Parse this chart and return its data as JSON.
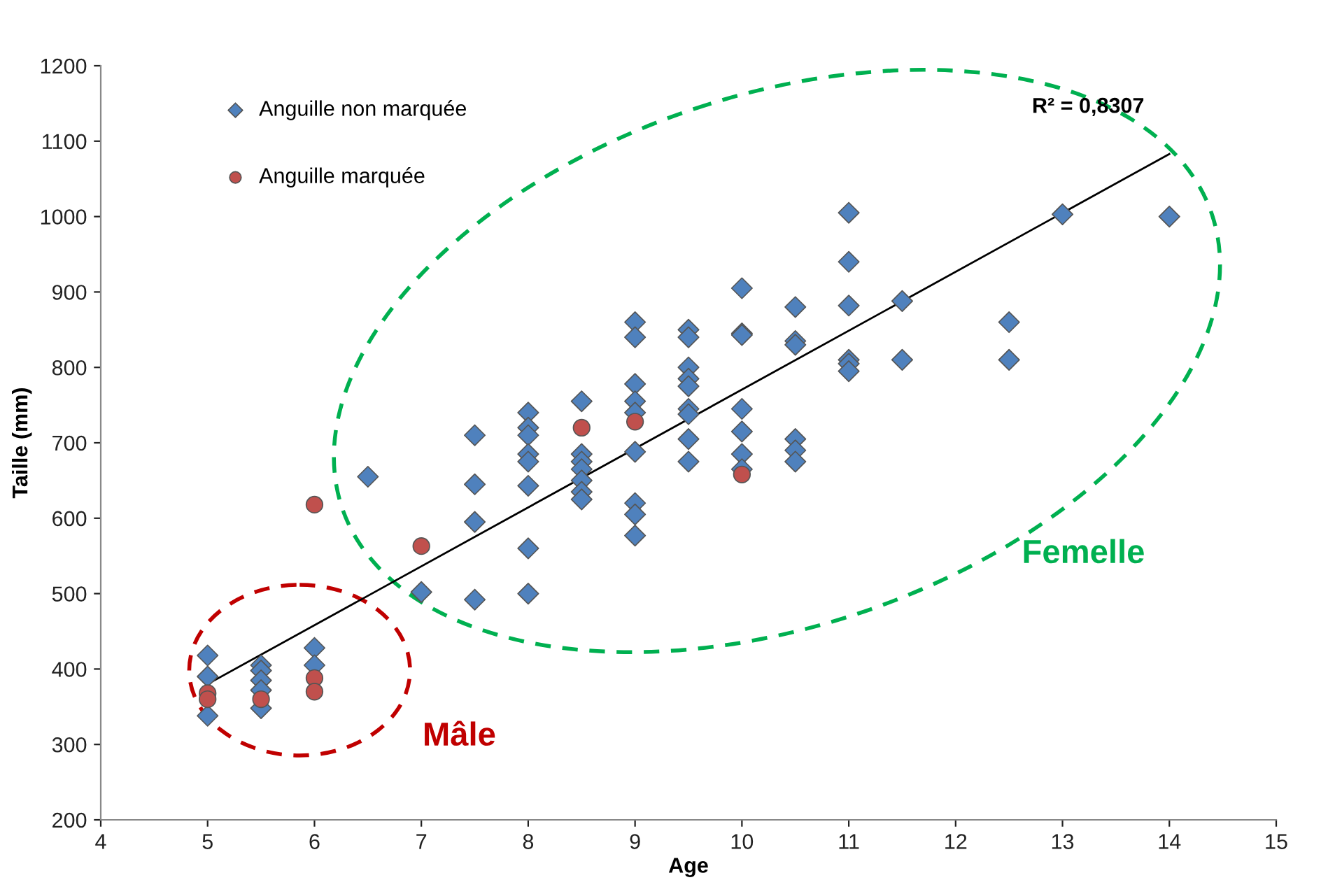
{
  "chart_data": {
    "type": "scatter",
    "xlabel": "Age",
    "ylabel": "Taille (mm)",
    "xlim": [
      4,
      15
    ],
    "xticks": [
      4,
      5,
      6,
      7,
      8,
      9,
      10,
      11,
      12,
      13,
      14,
      15
    ],
    "ylim": [
      200,
      1200
    ],
    "yticks": [
      200,
      300,
      400,
      500,
      600,
      700,
      800,
      900,
      1000,
      1100,
      1200
    ],
    "grid": false,
    "legend": "top left",
    "annotations": [
      "R² = 0,8307",
      "Mâle",
      "Femelle"
    ],
    "series": [
      {
        "name": "Anguille non marquée",
        "color": "#4f81bd",
        "marker": "diamond",
        "x": [
          5,
          5,
          5,
          5.5,
          5.5,
          5.5,
          5.5,
          5.5,
          6,
          6,
          6.5,
          7,
          7.5,
          7.5,
          7.5,
          7.5,
          8,
          8,
          8,
          8,
          8,
          8,
          8,
          8,
          8.5,
          8.5,
          8.5,
          8.5,
          8.5,
          8.5,
          8.5,
          9,
          9,
          9,
          9,
          9,
          9,
          9,
          9,
          9,
          9.5,
          9.5,
          9.5,
          9.5,
          9.5,
          9.5,
          9.5,
          9.5,
          9.5,
          10,
          10,
          10,
          10,
          10,
          10,
          10,
          10.5,
          10.5,
          10.5,
          10.5,
          10.5,
          10.5,
          11,
          11,
          11,
          11,
          11,
          11,
          11.5,
          11.5,
          12.5,
          12.5,
          13,
          14
        ],
        "values": [
          418,
          390,
          338,
          405,
          398,
          385,
          372,
          348,
          428,
          405,
          655,
          502,
          710,
          645,
          595,
          492,
          740,
          720,
          710,
          685,
          675,
          643,
          560,
          500,
          755,
          685,
          675,
          665,
          650,
          635,
          625,
          860,
          840,
          778,
          755,
          740,
          688,
          620,
          605,
          577,
          850,
          840,
          800,
          785,
          775,
          745,
          738,
          705,
          675,
          905,
          845,
          843,
          745,
          715,
          685,
          665,
          880,
          835,
          830,
          705,
          690,
          675,
          1005,
          940,
          882,
          810,
          805,
          795,
          888,
          810,
          860,
          810,
          1003,
          1000
        ]
      },
      {
        "name": "Anguille marquée",
        "color": "#c0504d",
        "marker": "circle",
        "x": [
          5,
          5,
          5.5,
          6,
          6,
          6,
          7,
          8.5,
          9,
          10
        ],
        "values": [
          368,
          360,
          360,
          388,
          370,
          618,
          563,
          720,
          728,
          658
        ]
      },
      {
        "type": "line",
        "color": "#000000",
        "x": [
          5,
          14
        ],
        "values": [
          380,
          1083
        ]
      }
    ]
  }
}
